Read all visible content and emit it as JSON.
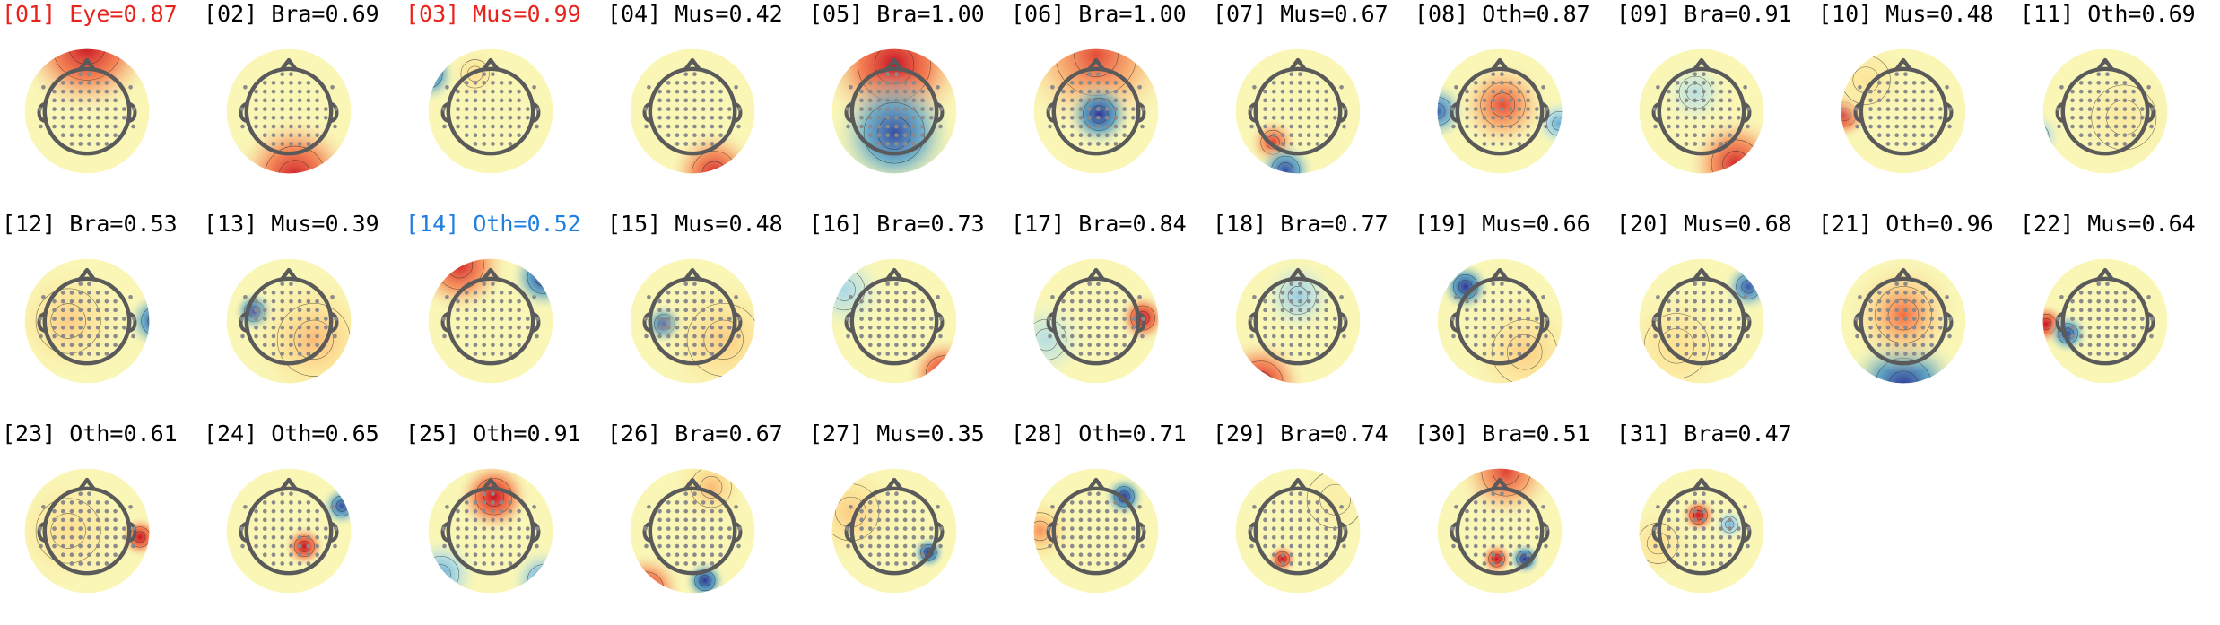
{
  "colors": {
    "default": "#000000",
    "rejected": "#e8231c",
    "selected": "#1f7fe0"
  },
  "components": [
    {
      "label": "[01] Eye=0.87",
      "state": "rejected",
      "pattern": "frontal_pos"
    },
    {
      "label": "[02] Bra=0.69",
      "state": "default",
      "pattern": "occipital_pos"
    },
    {
      "label": "[03] Mus=0.99",
      "state": "rejected",
      "pattern": "left_front_neg"
    },
    {
      "label": "[04] Mus=0.42",
      "state": "default",
      "pattern": "occipital_pos_small"
    },
    {
      "label": "[05] Bra=1.00",
      "state": "default",
      "pattern": "front_pos_back_neg"
    },
    {
      "label": "[06] Bra=1.00",
      "state": "default",
      "pattern": "central_neg_ring_pos"
    },
    {
      "label": "[07] Mus=0.67",
      "state": "default",
      "pattern": "left_temporal_dipole"
    },
    {
      "label": "[08] Oth=0.87",
      "state": "default",
      "pattern": "midline_pos_sides_neg"
    },
    {
      "label": "[09] Bra=0.91",
      "state": "default",
      "pattern": "right_occipital_pos"
    },
    {
      "label": "[10] Mus=0.48",
      "state": "default",
      "pattern": "left_temporal_focal_pos"
    },
    {
      "label": "[11] Oth=0.69",
      "state": "default",
      "pattern": "left_edge_neg_faint"
    },
    {
      "label": "[12] Bra=0.53",
      "state": "default",
      "pattern": "right_edge_neg"
    },
    {
      "label": "[13] Mus=0.39",
      "state": "default",
      "pattern": "left_focal_neg"
    },
    {
      "label": "[14] Oth=0.52",
      "state": "selected",
      "pattern": "front_pos_right_neg"
    },
    {
      "label": "[15] Mus=0.48",
      "state": "default",
      "pattern": "left_focal_neg_b"
    },
    {
      "label": "[16] Bra=0.73",
      "state": "default",
      "pattern": "right_occipital_pos_b"
    },
    {
      "label": "[17] Bra=0.84",
      "state": "default",
      "pattern": "right_focal_pos"
    },
    {
      "label": "[18] Bra=0.77",
      "state": "default",
      "pattern": "left_occipital_pos"
    },
    {
      "label": "[19] Mus=0.66",
      "state": "default",
      "pattern": "left_front_focal_neg"
    },
    {
      "label": "[20] Mus=0.68",
      "state": "default",
      "pattern": "right_front_neg"
    },
    {
      "label": "[21] Oth=0.96",
      "state": "default",
      "pattern": "posterior_neg"
    },
    {
      "label": "[22] Mus=0.64",
      "state": "default",
      "pattern": "left_temporal_dipole_b"
    },
    {
      "label": "[23] Oth=0.61",
      "state": "default",
      "pattern": "right_temporal_pos"
    },
    {
      "label": "[24] Oth=0.65",
      "state": "default",
      "pattern": "right_dipole"
    },
    {
      "label": "[25] Oth=0.91",
      "state": "default",
      "pattern": "central_front_pos"
    },
    {
      "label": "[26] Bra=0.67",
      "state": "default",
      "pattern": "left_occipital_pos_mid_neg"
    },
    {
      "label": "[27] Mus=0.35",
      "state": "default",
      "pattern": "right_focal_neg_b"
    },
    {
      "label": "[28] Oth=0.71",
      "state": "default",
      "pattern": "central_focal_neg"
    },
    {
      "label": "[29] Bra=0.74",
      "state": "default",
      "pattern": "central_focal_pos"
    },
    {
      "label": "[30] Bra=0.51",
      "state": "default",
      "pattern": "central_dipole"
    },
    {
      "label": "[31] Bra=0.47",
      "state": "default",
      "pattern": "left_central_pos"
    }
  ]
}
